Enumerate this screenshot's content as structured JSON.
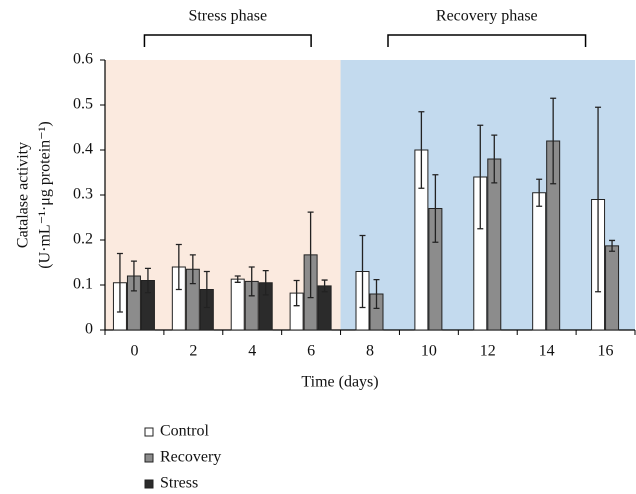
{
  "chart_data": {
    "type": "bar",
    "ylabel": [
      "Catalase activity",
      "(U·mL⁻¹·μg protein⁻¹)"
    ],
    "xlabel": "Time (days)",
    "categories": [
      "0",
      "2",
      "4",
      "6",
      "8",
      "10",
      "12",
      "14",
      "16"
    ],
    "series": [
      {
        "name": "Control",
        "color": "#ffffff",
        "values": [
          0.105,
          0.14,
          0.113,
          0.082,
          0.13,
          0.4,
          0.34,
          0.305,
          0.29
        ],
        "errors": [
          0.065,
          0.05,
          0.007,
          0.028,
          0.08,
          0.085,
          0.115,
          0.03,
          0.205
        ]
      },
      {
        "name": "Recovery",
        "color": "#8c8c8c",
        "values": [
          0.12,
          0.135,
          0.108,
          0.167,
          0.08,
          0.27,
          0.38,
          0.42,
          0.187
        ],
        "errors": [
          0.033,
          0.032,
          0.032,
          0.095,
          0.032,
          0.075,
          0.053,
          0.095,
          0.012
        ]
      },
      {
        "name": "Stress",
        "color": "#2b2b2b",
        "values": [
          0.11,
          0.09,
          0.105,
          0.098,
          null,
          null,
          null,
          null,
          null
        ],
        "errors": [
          0.027,
          0.04,
          0.027,
          0.013,
          null,
          null,
          null,
          null,
          null
        ]
      }
    ],
    "phases": [
      {
        "label": "Stress phase",
        "background": "#fbeadf"
      },
      {
        "label": "Recovery phase",
        "background": "#c3daee"
      }
    ],
    "ylim": [
      0,
      0.6
    ],
    "yticks": [
      0,
      0.1,
      0.2,
      0.3,
      0.4,
      0.5,
      0.6
    ]
  }
}
